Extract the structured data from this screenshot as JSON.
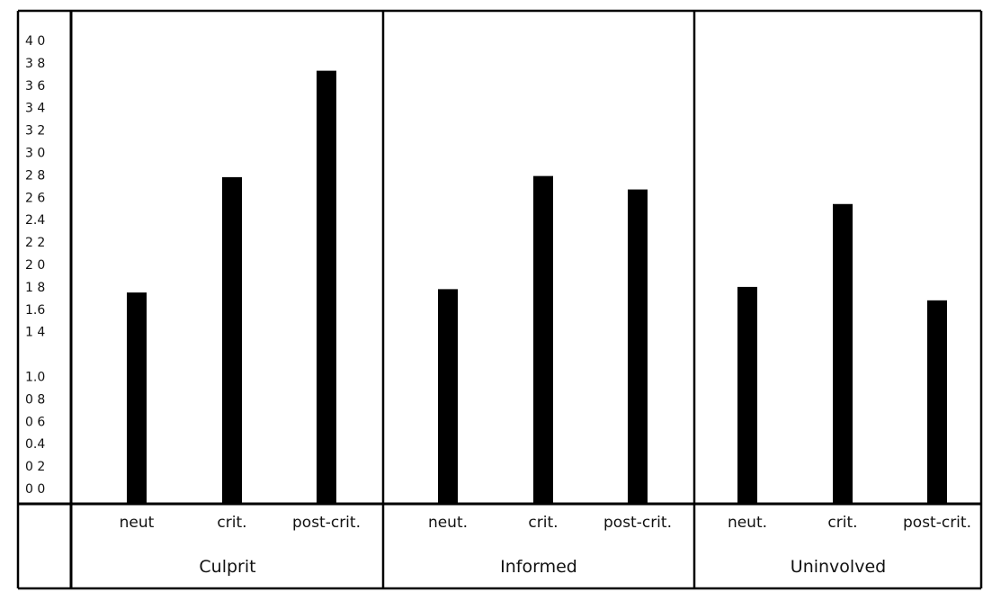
{
  "chart_data": {
    "type": "bar",
    "title": "",
    "xlabel": "",
    "ylabel": "",
    "ylim": [
      0,
      4.0
    ],
    "yticks": [
      "4 0",
      "3 8",
      "3 6",
      "3 4",
      "3 2",
      "3 0",
      "2 8",
      "2 6",
      "2.4",
      "2 2",
      "2 0",
      "1 8",
      "1.6",
      "1 4",
      "1.0",
      "0 8",
      "0 6",
      "0.4",
      "0 2",
      "0 0"
    ],
    "ytick_values": [
      4.0,
      3.8,
      3.6,
      3.4,
      3.2,
      3.0,
      2.8,
      2.6,
      2.4,
      2.2,
      2.0,
      1.8,
      1.6,
      1.4,
      1.0,
      0.8,
      0.6,
      0.4,
      0.2,
      0.0
    ],
    "groups": [
      {
        "name": "Culprit",
        "bars": [
          {
            "label": "neut",
            "value": 1.75
          },
          {
            "label": "crit.",
            "value": 2.78
          },
          {
            "label": "post-crit.",
            "value": 3.73
          }
        ]
      },
      {
        "name": "Informed",
        "bars": [
          {
            "label": "neut.",
            "value": 1.78
          },
          {
            "label": "crit.",
            "value": 2.79
          },
          {
            "label": "post-crit.",
            "value": 2.67
          }
        ]
      },
      {
        "name": "Uninvolved",
        "bars": [
          {
            "label": "neut.",
            "value": 1.8
          },
          {
            "label": "crit.",
            "value": 2.54
          },
          {
            "label": "post-crit.",
            "value": 1.68
          }
        ]
      }
    ],
    "grid": false,
    "bar_color": "#000000"
  }
}
